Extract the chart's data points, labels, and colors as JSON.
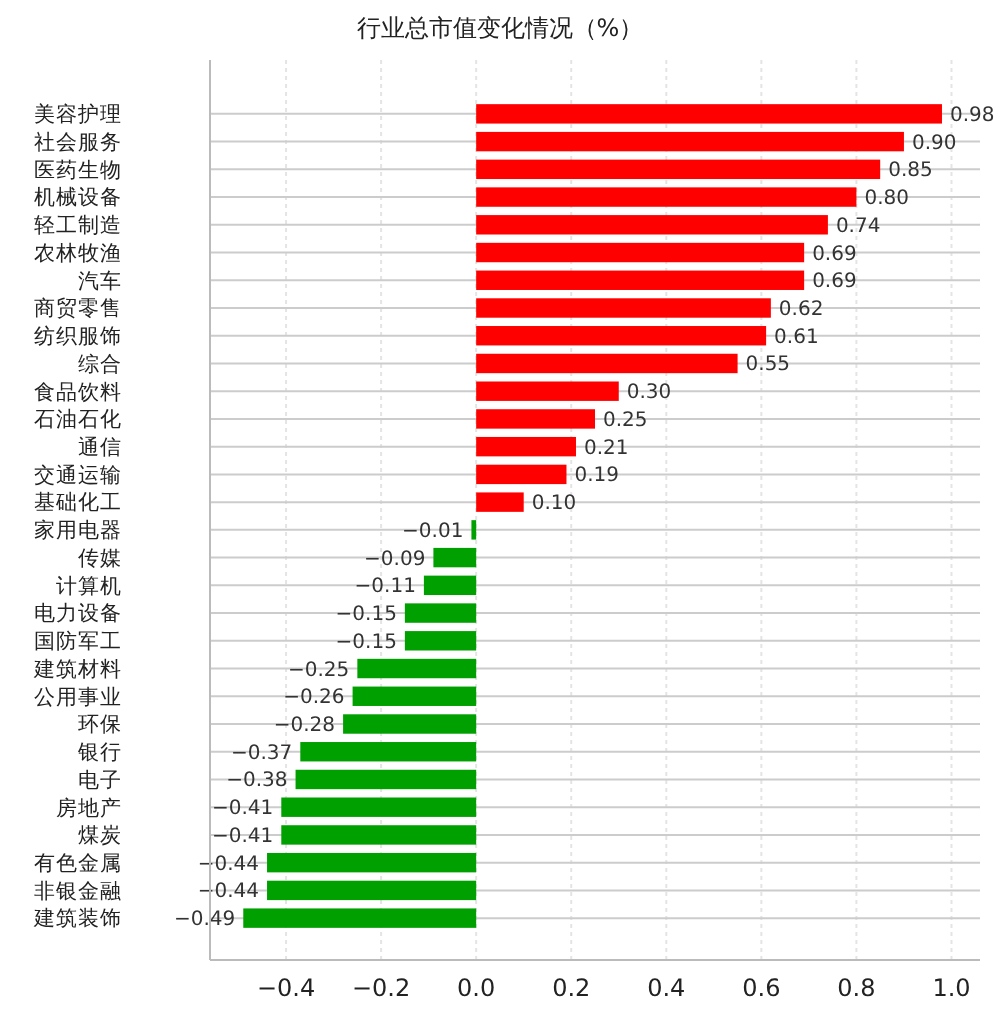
{
  "chart_data": {
    "type": "bar",
    "orientation": "horizontal",
    "title": "行业总市值变化情况（%）",
    "categories": [
      "美容护理",
      "社会服务",
      "医药生物",
      "机械设备",
      "轻工制造",
      "农林牧渔",
      "汽车",
      "商贸零售",
      "纺织服饰",
      "综合",
      "食品饮料",
      "石油石化",
      "通信",
      "交通运输",
      "基础化工",
      "家用电器",
      "传媒",
      "计算机",
      "电力设备",
      "国防军工",
      "建筑材料",
      "公用事业",
      "环保",
      "银行",
      "电子",
      "房地产",
      "煤炭",
      "有色金属",
      "非银金融",
      "建筑装饰"
    ],
    "values": [
      0.98,
      0.9,
      0.85,
      0.8,
      0.74,
      0.69,
      0.69,
      0.62,
      0.61,
      0.55,
      0.3,
      0.25,
      0.21,
      0.19,
      0.1,
      -0.01,
      -0.09,
      -0.11,
      -0.15,
      -0.15,
      -0.25,
      -0.26,
      -0.28,
      -0.37,
      -0.38,
      -0.41,
      -0.41,
      -0.44,
      -0.44,
      -0.49
    ],
    "colors": [
      "#ff0000",
      "#ff0000",
      "#ff0000",
      "#ff0000",
      "#ff0000",
      "#ff0000",
      "#ff0000",
      "#ff0000",
      "#ff0000",
      "#ff0000",
      "#ff0000",
      "#ff0000",
      "#ff0000",
      "#ff0000",
      "#ff0000",
      "#00a000",
      "#00a000",
      "#00a000",
      "#00a000",
      "#00a000",
      "#00a000",
      "#00a000",
      "#00a000",
      "#00a000",
      "#00a000",
      "#00a000",
      "#00a000",
      "#00a000",
      "#00a000",
      "#00a000"
    ],
    "xlim": [
      -0.56,
      1.06
    ],
    "xticks": [
      {
        "value": -0.4,
        "label": "−0.4"
      },
      {
        "value": -0.2,
        "label": "−0.2"
      },
      {
        "value": 0,
        "label": "0.0"
      },
      {
        "value": 0.2,
        "label": "0.2"
      },
      {
        "value": 0.4,
        "label": "0.4"
      },
      {
        "value": 0.6,
        "label": "0.6"
      },
      {
        "value": 0.8,
        "label": "0.8"
      },
      {
        "value": 1.0,
        "label": "1.0"
      }
    ],
    "value_labels": [
      "0.98",
      "0.90",
      "0.85",
      "0.80",
      "0.74",
      "0.69",
      "0.69",
      "0.62",
      "0.61",
      "0.55",
      "0.30",
      "0.25",
      "0.21",
      "0.19",
      "0.10",
      "−0.01",
      "−0.09",
      "−0.11",
      "−0.15",
      "−0.15",
      "−0.25",
      "−0.26",
      "−0.28",
      "−0.37",
      "−0.38",
      "−0.41",
      "−0.41",
      "−0.44",
      "−0.44",
      "−0.49"
    ],
    "grid": true
  }
}
